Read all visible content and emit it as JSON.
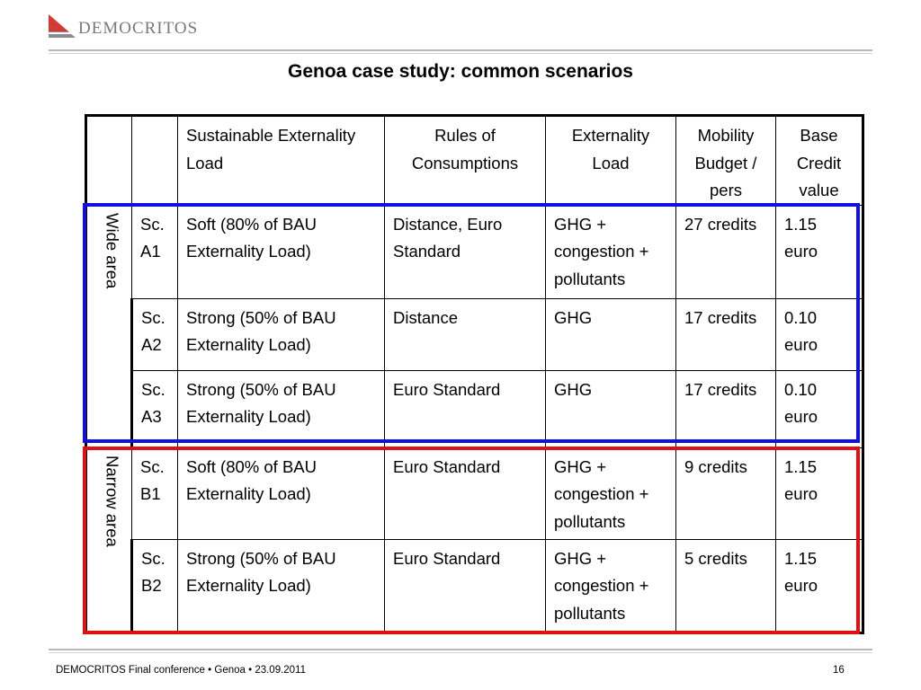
{
  "brand": {
    "name": "DEMOCRITOS",
    "colors": {
      "logo_red": "#d23b35",
      "logo_gray": "#8c8c8c"
    }
  },
  "title": "Genoa case study: common scenarios",
  "table": {
    "headers": [
      "",
      "",
      "Sustainable Externality Load",
      "Rules of Consumptions",
      "Externality Load",
      "Mobility Budget / pers",
      "Base Credit value"
    ],
    "groups": [
      {
        "label": "Wide area",
        "color": "#1010e0"
      },
      {
        "label": "Narrow area",
        "color": "#e01010"
      }
    ],
    "rows": [
      [
        "Sc. A1",
        "Soft (80% of BAU Externality Load)",
        "Distance, Euro Standard",
        "GHG + congestion + pollutants",
        "27 credits",
        "1.15 euro"
      ],
      [
        "Sc. A2",
        "Strong (50% of BAU Externality Load)",
        "Distance",
        "GHG",
        "17 credits",
        "0.10 euro"
      ],
      [
        "Sc. A3",
        "Strong (50% of BAU Externality Load)",
        "Euro Standard",
        "GHG",
        "17 credits",
        "0.10 euro"
      ],
      [
        "Sc. B1",
        "Soft (80% of BAU Externality Load)",
        "Euro Standard",
        "GHG + congestion + pollutants",
        "9 credits",
        "1.15 euro"
      ],
      [
        "Sc. B2",
        "Strong (50% of BAU Externality Load)",
        "Euro Standard",
        "GHG + congestion + pollutants",
        "5 credits",
        "1.15 euro"
      ]
    ]
  },
  "footer": {
    "left": "DEMOCRITOS Final conference • Genoa • 23.09.2011",
    "page": "16"
  }
}
